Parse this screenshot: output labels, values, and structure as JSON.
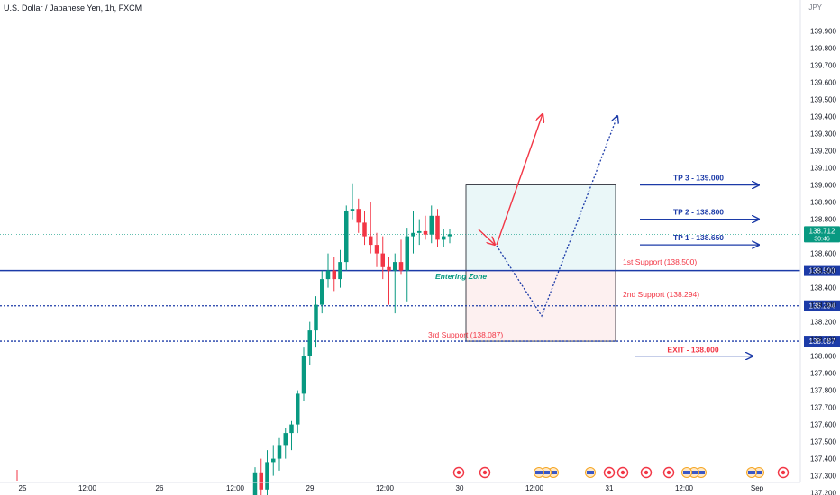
{
  "header": {
    "title": "U.S. Dollar / Japanese Yen, 1h, FXCM",
    "currency": "JPY"
  },
  "price_label": {
    "price": "138.712",
    "countdown": "30:46"
  },
  "colors": {
    "up": "#089981",
    "down": "#f23645",
    "blue": "#1c3ba8",
    "teal_zone": "#eaf7f8",
    "red_zone": "#fdf0f0"
  },
  "chart_data": {
    "type": "candlestick",
    "title": "U.S. Dollar / Japanese Yen, 1h, FXCM",
    "ylim": [
      137.15,
      139.95
    ],
    "y_ticks": [
      "137.200",
      "137.300",
      "137.400",
      "137.500",
      "137.600",
      "137.700",
      "137.800",
      "137.900",
      "138.000",
      "138.100",
      "138.200",
      "138.300",
      "138.400",
      "138.500",
      "138.600",
      "138.700",
      "138.800",
      "138.900",
      "139.000",
      "139.100",
      "139.200",
      "139.300",
      "139.400",
      "139.500",
      "139.600",
      "139.700",
      "139.800",
      "139.900"
    ],
    "x_ticks": [
      "25",
      "12:00",
      "26",
      "12:00",
      "29",
      "12:00",
      "30",
      "12:00",
      "31",
      "12:00",
      "Sep"
    ],
    "candles": [
      {
        "o": 137.15,
        "h": 137.35,
        "l": 137.15,
        "c": 137.32
      },
      {
        "o": 137.32,
        "h": 137.4,
        "l": 137.18,
        "c": 137.22
      },
      {
        "o": 137.22,
        "h": 137.45,
        "l": 137.18,
        "c": 137.38
      },
      {
        "o": 137.38,
        "h": 137.48,
        "l": 137.3,
        "c": 137.4
      },
      {
        "o": 137.4,
        "h": 137.52,
        "l": 137.33,
        "c": 137.48
      },
      {
        "o": 137.48,
        "h": 137.58,
        "l": 137.4,
        "c": 137.55
      },
      {
        "o": 137.55,
        "h": 137.62,
        "l": 137.45,
        "c": 137.6
      },
      {
        "o": 137.6,
        "h": 137.8,
        "l": 137.55,
        "c": 137.78
      },
      {
        "o": 137.78,
        "h": 138.05,
        "l": 137.74,
        "c": 138.0
      },
      {
        "o": 138.0,
        "h": 138.2,
        "l": 137.95,
        "c": 138.15
      },
      {
        "o": 138.15,
        "h": 138.35,
        "l": 138.05,
        "c": 138.3
      },
      {
        "o": 138.3,
        "h": 138.5,
        "l": 138.25,
        "c": 138.45
      },
      {
        "o": 138.45,
        "h": 138.6,
        "l": 138.4,
        "c": 138.5
      },
      {
        "o": 138.5,
        "h": 138.58,
        "l": 138.38,
        "c": 138.45
      },
      {
        "o": 138.45,
        "h": 138.62,
        "l": 138.4,
        "c": 138.55
      },
      {
        "o": 138.55,
        "h": 138.88,
        "l": 138.5,
        "c": 138.85
      },
      {
        "o": 138.85,
        "h": 139.01,
        "l": 138.8,
        "c": 138.86
      },
      {
        "o": 138.86,
        "h": 138.92,
        "l": 138.72,
        "c": 138.78
      },
      {
        "o": 138.78,
        "h": 138.85,
        "l": 138.65,
        "c": 138.7
      },
      {
        "o": 138.7,
        "h": 138.9,
        "l": 138.6,
        "c": 138.65
      },
      {
        "o": 138.65,
        "h": 138.72,
        "l": 138.52,
        "c": 138.6
      },
      {
        "o": 138.6,
        "h": 138.7,
        "l": 138.45,
        "c": 138.52
      },
      {
        "o": 138.52,
        "h": 138.58,
        "l": 138.3,
        "c": 138.5
      },
      {
        "o": 138.5,
        "h": 138.6,
        "l": 138.25,
        "c": 138.55
      },
      {
        "o": 138.55,
        "h": 138.68,
        "l": 138.48,
        "c": 138.5
      },
      {
        "o": 138.5,
        "h": 138.75,
        "l": 138.32,
        "c": 138.7
      },
      {
        "o": 138.7,
        "h": 138.85,
        "l": 138.6,
        "c": 138.72
      },
      {
        "o": 138.72,
        "h": 138.8,
        "l": 138.65,
        "c": 138.73
      },
      {
        "o": 138.73,
        "h": 138.82,
        "l": 138.68,
        "c": 138.71
      },
      {
        "o": 138.71,
        "h": 138.88,
        "l": 138.66,
        "c": 138.82
      },
      {
        "o": 138.82,
        "h": 138.86,
        "l": 138.64,
        "c": 138.68
      },
      {
        "o": 138.68,
        "h": 138.74,
        "l": 138.64,
        "c": 138.7
      },
      {
        "o": 138.7,
        "h": 138.74,
        "l": 138.66,
        "c": 138.712
      }
    ],
    "current_price": 138.712,
    "levels": [
      {
        "price": 138.5,
        "label": "138.500",
        "style": "solid"
      },
      {
        "price": 138.294,
        "label": "138.294",
        "style": "dotted"
      },
      {
        "price": 138.087,
        "label": "138.087",
        "style": "dotted"
      }
    ],
    "annotations": {
      "entering_zone": "Entering Zone",
      "support1": "1st Support (138.500)",
      "support2": "2nd Support (138.294)",
      "support3": "3rd Support (138.087)",
      "tp3": "TP 3 - 139.000",
      "tp2": "TP 2 - 138.800",
      "tp1": "TP 1 - 138.650",
      "exit": "EXIT - 138.000"
    }
  },
  "events": [
    {
      "type": "warn"
    },
    {
      "type": "warn"
    },
    {
      "type": "flag3"
    },
    {
      "type": "flag"
    },
    {
      "type": "warn"
    },
    {
      "type": "warn"
    },
    {
      "type": "warn"
    },
    {
      "type": "warn"
    },
    {
      "type": "flag3"
    },
    {
      "type": "flag2"
    },
    {
      "type": "warn"
    }
  ]
}
